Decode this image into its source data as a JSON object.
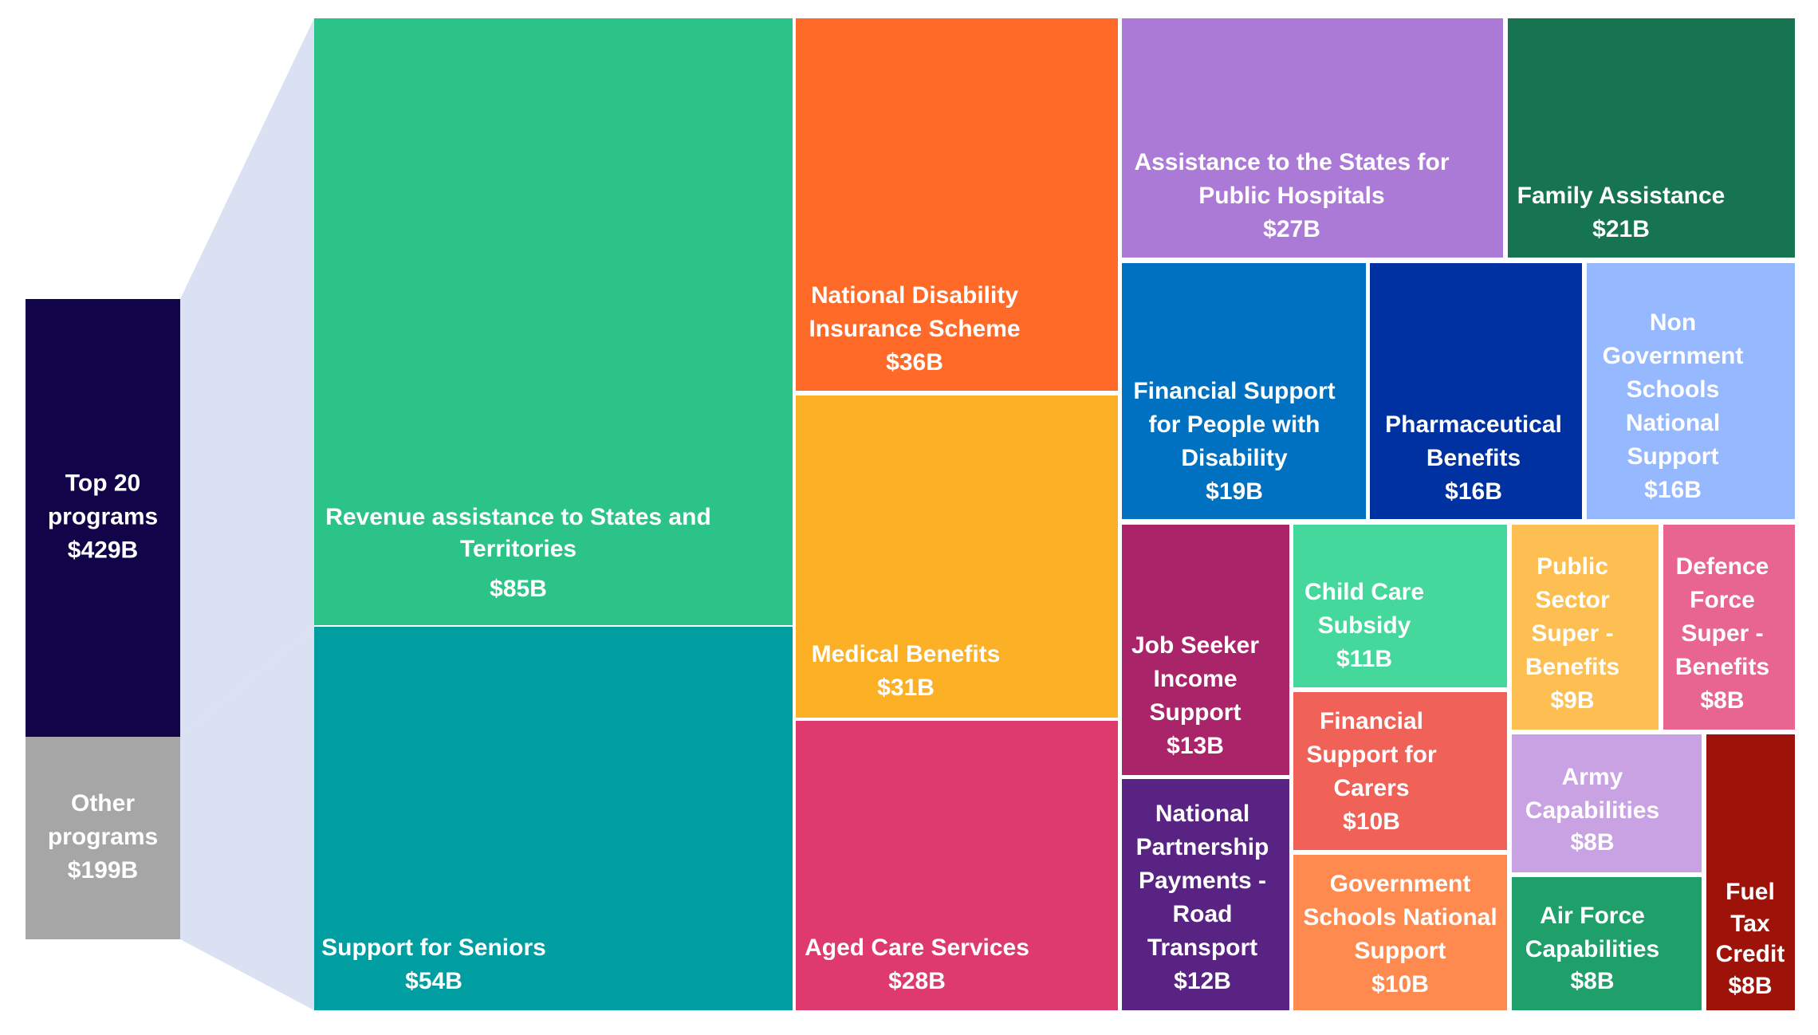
{
  "chart_data": {
    "type": "treemap",
    "title": "",
    "unit": "$B",
    "summary": {
      "top": {
        "label": "Top 20 programs",
        "value": 429,
        "value_label": "$429B"
      },
      "other": {
        "label": "Other programs",
        "value": 199,
        "value_label": "$199B"
      }
    },
    "programs": [
      {
        "name": "Revenue assistance to States and Territories",
        "value": 85,
        "value_label": "$85B",
        "color": "#2BC387"
      },
      {
        "name": "Support for Seniors",
        "value": 54,
        "value_label": "$54B",
        "color": "#019EA1"
      },
      {
        "name": "National Disability Insurance Scheme",
        "value": 36,
        "value_label": "$36B",
        "color": "#FF6A29"
      },
      {
        "name": "Medical Benefits",
        "value": 31,
        "value_label": "$31B",
        "color": "#FBB026"
      },
      {
        "name": "Aged Care Services",
        "value": 28,
        "value_label": "$28B",
        "color": "#DE3A6E"
      },
      {
        "name": "Assistance to the States for Public Hospitals",
        "value": 27,
        "value_label": "$27B",
        "color": "#AB7AD6"
      },
      {
        "name": "Family Assistance",
        "value": 21,
        "value_label": "$21B",
        "color": "#177450"
      },
      {
        "name": "Financial Support for People with Disability",
        "value": 19,
        "value_label": "$19B",
        "color": "#0070C0"
      },
      {
        "name": "Pharmaceutical Benefits",
        "value": 16,
        "value_label": "$16B",
        "color": "#0031A1"
      },
      {
        "name": "Non Government Schools National Support",
        "value": 16,
        "value_label": "$16B",
        "color": "#96B8FF"
      },
      {
        "name": "Job Seeker Income Support",
        "value": 13,
        "value_label": "$13B",
        "color": "#A92468"
      },
      {
        "name": "Child Care Subsidy",
        "value": 11,
        "value_label": "$11B",
        "color": "#44D89D"
      },
      {
        "name": "Public Sector Super - Benefits",
        "value": 9,
        "value_label": "$9B",
        "color": "#FDBF51"
      },
      {
        "name": "Defence Force Super - Benefits",
        "value": 8,
        "value_label": "$8B",
        "color": "#E86592"
      },
      {
        "name": "Financial Support for Carers",
        "value": 10,
        "value_label": "$10B",
        "color": "#F06158"
      },
      {
        "name": "Army Capabilities",
        "value": 8,
        "value_label": "$8B",
        "color": "#C9A2E3"
      },
      {
        "name": "National Partnership Payments - Road Transport",
        "value": 12,
        "value_label": "$12B",
        "color": "#582382"
      },
      {
        "name": "Government Schools National Support",
        "value": 10,
        "value_label": "$10B",
        "color": "#FF8A50"
      },
      {
        "name": "Air Force Capabilities",
        "value": 8,
        "value_label": "$8B",
        "color": "#1FA06A"
      },
      {
        "name": "Fuel Tax Credit",
        "value": 8,
        "value_label": "$8B",
        "color": "#9E1309"
      }
    ],
    "colors": {
      "top_bar": "#120449",
      "other_bar": "#A6A6A6",
      "connector": "#D9E1F2",
      "text": "#FFFFFF"
    }
  }
}
